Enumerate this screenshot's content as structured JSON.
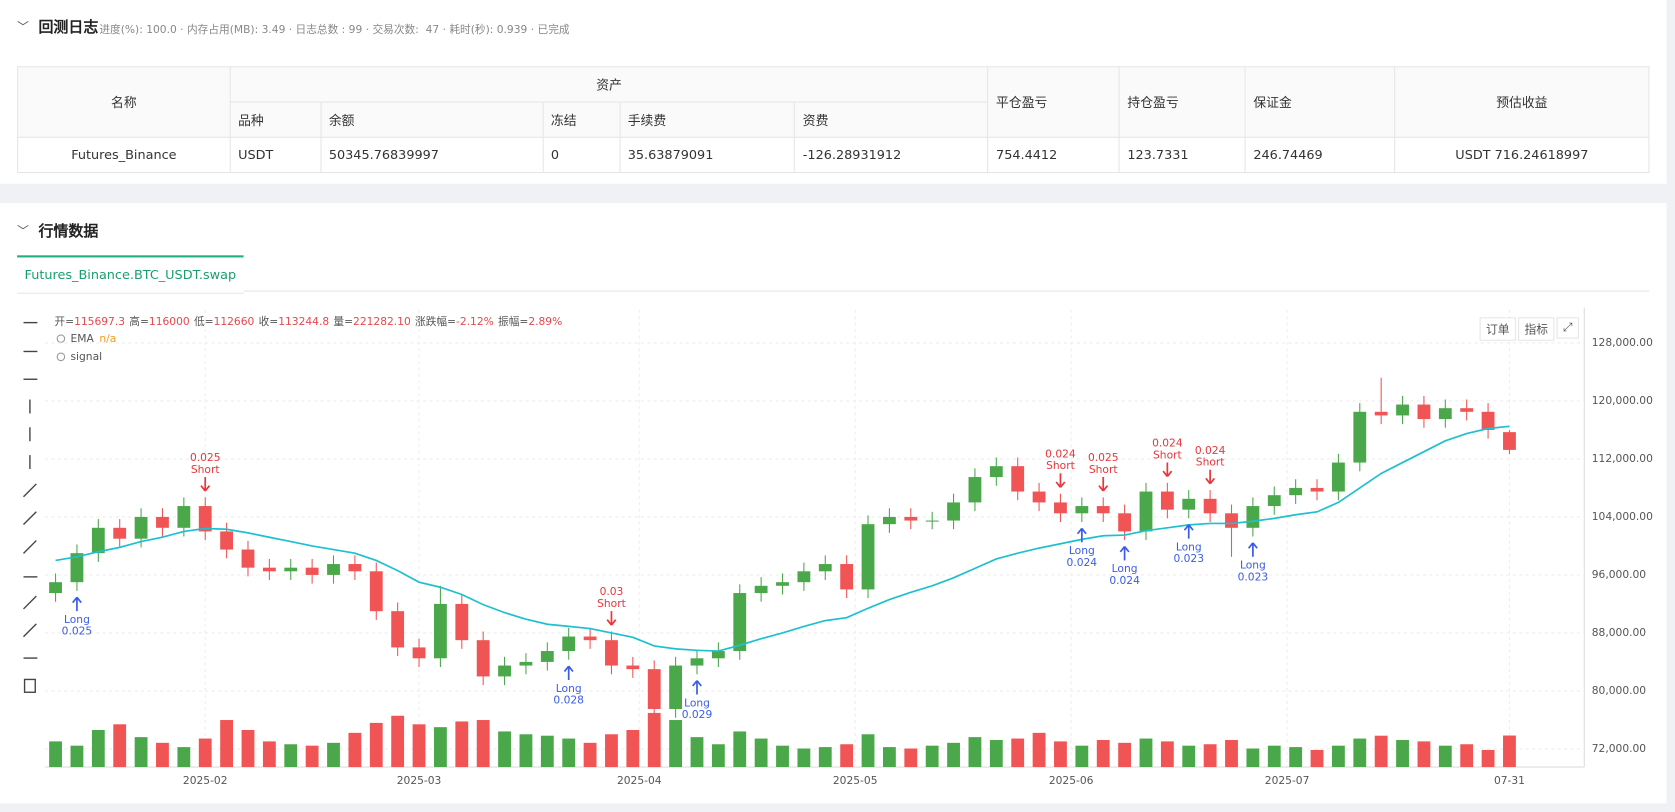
{
  "log": {
    "title": "回测日志",
    "status": "进度(%): 100.0 · 内存占用(MB): 3.49 · 日志总数 : 99 · 交易次数:  47 · 耗时(秒): 0.939 · 已完成"
  },
  "table": {
    "head": [
      "名称",
      "资产",
      "平仓盈亏",
      "持仓盈亏",
      "保证金",
      "预估收益"
    ],
    "subhead": [
      "品种",
      "余额",
      "冻结",
      "手续费",
      "资费"
    ],
    "rows": [
      [
        "Futures_Binance",
        "USDT",
        "50345.76839997",
        "0",
        "35.63879091",
        "-126.28931912",
        "754.4412",
        "123.7331",
        "246.74469",
        "USDT 716.24618997"
      ]
    ]
  },
  "market": {
    "title": "行情数据",
    "tab": "Futures_Binance.BTC_USDT.swap",
    "buttons": [
      "订单",
      "指标"
    ]
  },
  "chart_data": {
    "type": "candlestick",
    "info": [
      {
        "label": "开=",
        "value": "115697.3"
      },
      {
        "label": "高=",
        "value": "116000"
      },
      {
        "label": "低=",
        "value": "112660"
      },
      {
        "label": "收=",
        "value": "113244.8"
      },
      {
        "label": "量=",
        "value": "221282.10"
      },
      {
        "label": "涨跌幅=",
        "value": "-2.12%"
      },
      {
        "label": "振幅=",
        "value": "2.89%"
      }
    ],
    "up_color": "#4aa84a",
    "down_color": "#f05454",
    "open": [
      93500,
      95000,
      99000,
      102500,
      101000,
      104000,
      102500,
      105500,
      102000,
      99500,
      97000,
      96500,
      97000,
      96000,
      97500,
      96500,
      91000,
      86000,
      84500,
      92000,
      87000,
      82000,
      83500,
      84000,
      85500,
      87500,
      87000,
      83500,
      83000,
      77500,
      83500,
      84500,
      85500,
      93500,
      94500,
      95000,
      96500,
      97500,
      94000,
      103000,
      104000,
      103500,
      103500,
      106000,
      109500,
      111000,
      107500,
      106000,
      104500,
      105500,
      104500,
      102000,
      107500,
      105000,
      106500,
      104500,
      102500,
      105500,
      107000,
      108000,
      107500,
      111500,
      118500,
      118000,
      119500,
      117500,
      119000,
      118500,
      115697.3
    ],
    "high": [
      96200,
      100200,
      103700,
      103700,
      105200,
      105200,
      106700,
      106700,
      103200,
      100700,
      98200,
      98200,
      98200,
      98700,
      98700,
      97700,
      92200,
      87200,
      94500,
      93200,
      88200,
      84700,
      85200,
      86700,
      88700,
      88700,
      88200,
      84700,
      84200,
      84700,
      85700,
      86700,
      94700,
      95700,
      96200,
      97700,
      98700,
      98700,
      104200,
      105200,
      105200,
      104700,
      107200,
      110700,
      112200,
      112200,
      108700,
      107200,
      106700,
      106700,
      105700,
      108700,
      108700,
      107700,
      107700,
      105700,
      106700,
      108200,
      109200,
      109200,
      112700,
      119700,
      123200,
      120700,
      120700,
      120200,
      120200,
      119700,
      116000
    ],
    "low": [
      92300,
      93800,
      97800,
      99800,
      99800,
      101300,
      101300,
      100800,
      98300,
      95800,
      95300,
      95300,
      94800,
      94800,
      95300,
      89800,
      84800,
      83300,
      83300,
      85800,
      80800,
      80800,
      82300,
      82800,
      84300,
      85800,
      82300,
      81800,
      74500,
      76300,
      82300,
      83300,
      84300,
      92300,
      93300,
      93800,
      95300,
      92800,
      92800,
      101800,
      102300,
      102300,
      102300,
      104800,
      108300,
      106300,
      104800,
      103300,
      103300,
      103300,
      100800,
      100800,
      103800,
      103800,
      103300,
      98500,
      101300,
      104300,
      105800,
      106300,
      106300,
      110300,
      116800,
      116800,
      116300,
      116300,
      117300,
      114800,
      112660
    ],
    "close": [
      95000,
      99000,
      102500,
      101000,
      104000,
      102500,
      105500,
      102000,
      99500,
      97000,
      96500,
      97000,
      96000,
      97500,
      96500,
      91000,
      86000,
      84500,
      92000,
      87000,
      82000,
      83500,
      84000,
      85500,
      87500,
      87000,
      83500,
      83000,
      77500,
      83500,
      84500,
      85500,
      93500,
      94500,
      95000,
      96500,
      97500,
      94000,
      103000,
      104000,
      103500,
      103500,
      106000,
      109500,
      111000,
      107500,
      106000,
      104500,
      105500,
      104500,
      102000,
      107500,
      105000,
      106500,
      104500,
      102500,
      105500,
      107000,
      108000,
      107500,
      111500,
      118500,
      118000,
      119500,
      117500,
      119000,
      118500,
      116000,
      113244.8
    ],
    "volume": [
      180000,
      150000,
      260000,
      300000,
      210000,
      170000,
      140000,
      200000,
      330000,
      260000,
      180000,
      160000,
      150000,
      170000,
      240000,
      310000,
      360000,
      300000,
      280000,
      320000,
      330000,
      250000,
      230000,
      220000,
      200000,
      170000,
      230000,
      260000,
      380000,
      330000,
      210000,
      160000,
      250000,
      200000,
      150000,
      130000,
      140000,
      160000,
      230000,
      140000,
      130000,
      150000,
      170000,
      210000,
      190000,
      200000,
      240000,
      180000,
      150000,
      190000,
      170000,
      200000,
      180000,
      150000,
      160000,
      190000,
      130000,
      150000,
      140000,
      120000,
      150000,
      200000,
      220000,
      190000,
      180000,
      150000,
      160000,
      120000,
      221282.1
    ],
    "ema": {
      "name": "EMA",
      "value_text": "n/a",
      "color": "#1ec0d0",
      "values": [
        98000,
        98500,
        99200,
        99800,
        100600,
        101200,
        102000,
        102400,
        102300,
        101800,
        101200,
        100600,
        100000,
        99500,
        99000,
        98000,
        96600,
        95000,
        94300,
        93300,
        91900,
        90800,
        89900,
        89200,
        88900,
        88600,
        88000,
        87400,
        86200,
        85800,
        85600,
        85500,
        86300,
        87200,
        88000,
        88900,
        89700,
        90100,
        91400,
        92600,
        93600,
        94500,
        95600,
        96900,
        98200,
        99000,
        99700,
        100300,
        100900,
        101400,
        101500,
        102100,
        102500,
        102900,
        103100,
        103100,
        103400,
        103800,
        104300,
        104700,
        106000,
        108000,
        110000,
        111500,
        113000,
        114500,
        115500,
        116200,
        116500
      ]
    },
    "signal_name": "signal",
    "long_color": "#3a5de8",
    "short_color": "#e8363b",
    "signals": [
      {
        "side": "Long",
        "amount": 0.025,
        "x": 1
      },
      {
        "side": "Short",
        "amount": 0.025,
        "x": 7
      },
      {
        "side": "Long",
        "amount": 0.028,
        "x": 24
      },
      {
        "side": "Short",
        "amount": 0.03,
        "x": 26
      },
      {
        "side": "Long",
        "amount": 0.029,
        "x": 30
      },
      {
        "side": "Short",
        "amount": 0.024,
        "x": 47
      },
      {
        "side": "Long",
        "amount": 0.024,
        "x": 48
      },
      {
        "side": "Short",
        "amount": 0.025,
        "x": 49
      },
      {
        "side": "Long",
        "amount": 0.024,
        "x": 50
      },
      {
        "side": "Short",
        "amount": 0.024,
        "x": 52
      },
      {
        "side": "Long",
        "amount": 0.023,
        "x": 53
      },
      {
        "side": "Short",
        "amount": 0.024,
        "x": 54
      },
      {
        "side": "Long",
        "amount": 0.023,
        "x": 56
      }
    ],
    "xlim": [
      -0.5,
      71.5
    ],
    "xticks": [
      {
        "value": 7,
        "label": "2025-02"
      },
      {
        "value": 17,
        "label": "2025-03"
      },
      {
        "value": 27.3,
        "label": "2025-04"
      },
      {
        "value": 37.4,
        "label": "2025-05"
      },
      {
        "value": 47.5,
        "label": "2025-06"
      },
      {
        "value": 57.6,
        "label": "2025-07"
      },
      {
        "value": 68,
        "label": "07-31"
      }
    ],
    "ylim": [
      69500,
      132570
    ],
    "yticks": [
      {
        "value": 72000,
        "label": "72,000.00"
      },
      {
        "value": 80000,
        "label": "80,000.00"
      },
      {
        "value": 88000,
        "label": "88,000.00"
      },
      {
        "value": 96000,
        "label": "96,000.00"
      },
      {
        "value": 104000,
        "label": "104,000.00"
      },
      {
        "value": 112000,
        "label": "112,000.00"
      },
      {
        "value": 120000,
        "label": "120,000.00"
      },
      {
        "value": 128000,
        "label": "128,000.00"
      }
    ],
    "vlim": [
      0,
      450000
    ],
    "grid": true
  }
}
